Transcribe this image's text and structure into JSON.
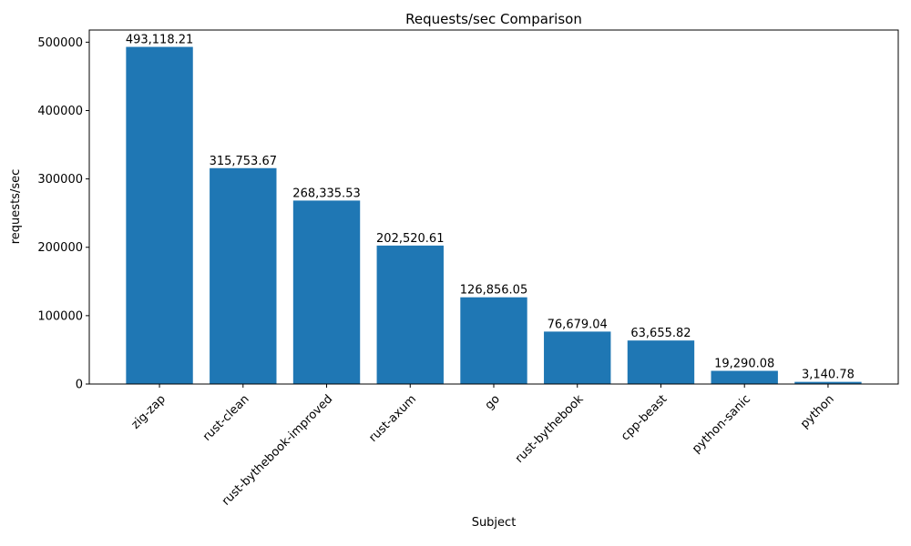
{
  "chart_data": {
    "type": "bar",
    "title": "Requests/sec Comparison",
    "xlabel": "Subject",
    "ylabel": "requests/sec",
    "categories": [
      "zig-zap",
      "rust-clean",
      "rust-bythebook-improved",
      "rust-axum",
      "go",
      "rust-bythebook",
      "cpp-beast",
      "python-sanic",
      "python"
    ],
    "values": [
      493118.21,
      315753.67,
      268335.53,
      202520.61,
      126856.05,
      76679.04,
      63655.82,
      19290.08,
      3140.78
    ],
    "value_labels": [
      "493,118.21",
      "315,753.67",
      "268,335.53",
      "202,520.61",
      "126,856.05",
      "76,679.04",
      "63,655.82",
      "19,290.08",
      "3,140.78"
    ],
    "yticks": [
      0,
      100000,
      200000,
      300000,
      400000,
      500000
    ],
    "ytick_labels": [
      "0",
      "100000",
      "200000",
      "300000",
      "400000",
      "500000"
    ],
    "ylim": [
      0,
      517774
    ],
    "bar_color": "#1f77b4",
    "grid": false,
    "legend_position": "none",
    "x_tick_rotation_deg": 45
  }
}
